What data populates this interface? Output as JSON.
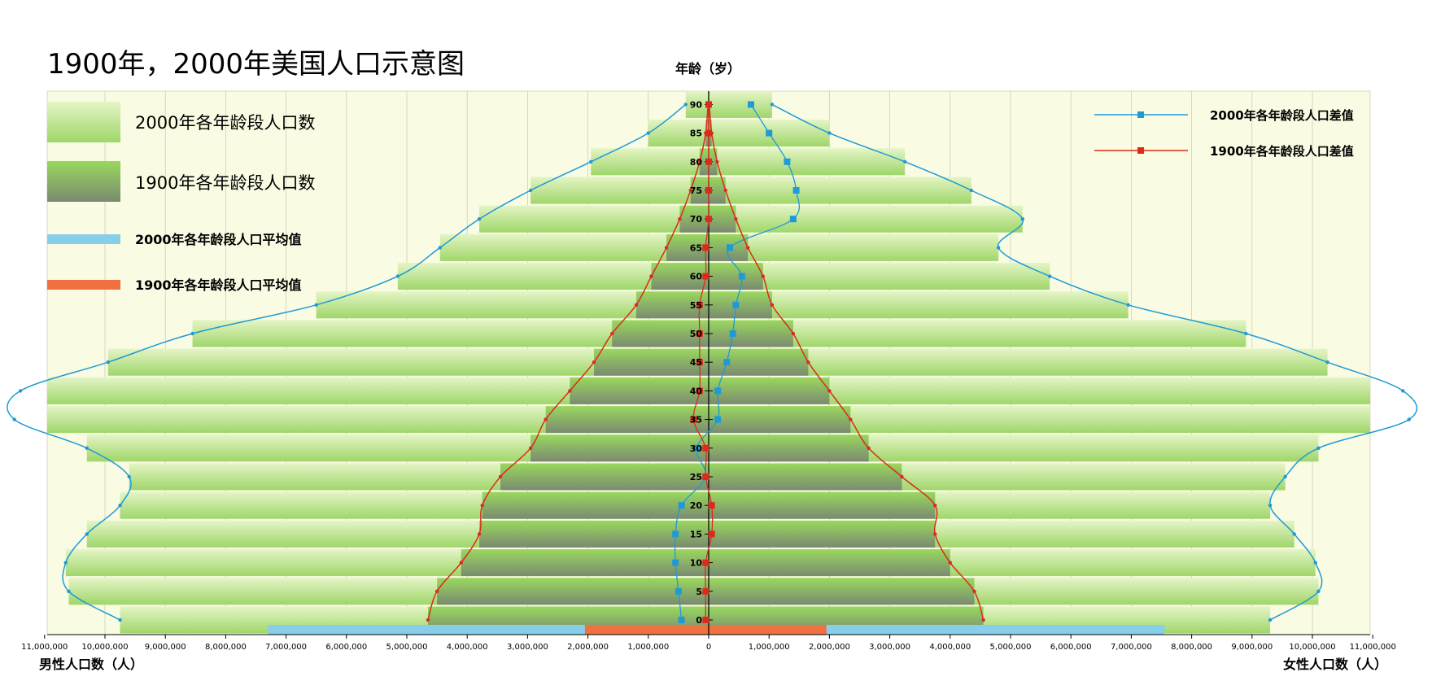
{
  "chart_data": {
    "type": "bar",
    "subtype": "population-pyramid",
    "title": "1900年，2000年美国人口示意图",
    "y_axis_title": "年龄（岁）",
    "x_axis_left_title": "男性人口数（人）",
    "x_axis_right_title": "女性人口数（人）",
    "ages": [
      0,
      5,
      10,
      15,
      20,
      25,
      30,
      35,
      40,
      45,
      50,
      55,
      60,
      65,
      70,
      75,
      80,
      85,
      90
    ],
    "x_ticks": [
      11000000,
      10000000,
      9000000,
      8000000,
      7000000,
      6000000,
      5000000,
      4000000,
      3000000,
      2000000,
      1000000,
      0,
      1000000,
      2000000,
      3000000,
      4000000,
      5000000,
      6000000,
      7000000,
      8000000,
      9000000,
      10000000,
      11000000
    ],
    "x_tick_labels": [
      "11,000,000",
      "10,000,000",
      "9,000,000",
      "8,000,000",
      "7,000,000",
      "6,000,000",
      "5,000,000",
      "4,000,000",
      "3,000,000",
      "2,000,000",
      "1,000,000",
      "0",
      "1,000,000",
      "2,000,000",
      "3,000,000",
      "4,000,000",
      "5,000,000",
      "6,000,000",
      "7,000,000",
      "8,000,000",
      "9,000,000",
      "10,000,000",
      "11,000,000"
    ],
    "xlim": [
      -11600000,
      11600000
    ],
    "grid": true,
    "legend": {
      "male_female_2000_bars": "2000年各年龄段人口数",
      "male_female_1900_bars": "1900年各年龄段人口数",
      "avg_2000": "2000年各年龄段人口平均值",
      "avg_1900": "1900年各年龄段人口平均值",
      "diff_2000": "2000年各年龄段人口差值",
      "diff_1900": "1900年各年龄段人口差值"
    },
    "series": [
      {
        "key": "male_2000",
        "values": [
          9750000,
          10600000,
          10650000,
          10300000,
          9750000,
          9600000,
          10300000,
          11500000,
          11400000,
          9950000,
          8550000,
          6500000,
          5150000,
          4450000,
          3800000,
          2950000,
          1950000,
          1000000,
          380000
        ]
      },
      {
        "key": "female_2000",
        "values": [
          9300000,
          10100000,
          10050000,
          9700000,
          9300000,
          9550000,
          10100000,
          11600000,
          11500000,
          10250000,
          8900000,
          6950000,
          5650000,
          4800000,
          5200000,
          4350000,
          3250000,
          2000000,
          1050000
        ]
      },
      {
        "key": "male_1900",
        "values": [
          4650000,
          4500000,
          4100000,
          3800000,
          3750000,
          3450000,
          2950000,
          2700000,
          2300000,
          1900000,
          1600000,
          1200000,
          950000,
          700000,
          480000,
          300000,
          150000,
          50000,
          10000
        ]
      },
      {
        "key": "female_1900",
        "values": [
          4550000,
          4400000,
          4000000,
          3750000,
          3750000,
          3200000,
          2650000,
          2350000,
          2000000,
          1650000,
          1400000,
          1050000,
          900000,
          650000,
          450000,
          280000,
          140000,
          50000,
          10000
        ]
      },
      {
        "key": "diff_2000",
        "values": [
          -450000,
          -500000,
          -550000,
          -550000,
          -450000,
          -50000,
          -200000,
          150000,
          150000,
          300000,
          400000,
          450000,
          550000,
          350000,
          1400000,
          1450000,
          1300000,
          1000000,
          700000
        ]
      },
      {
        "key": "diff_1900",
        "values": [
          -50000,
          -50000,
          -50000,
          50000,
          50000,
          -50000,
          -50000,
          -250000,
          -150000,
          -150000,
          -150000,
          -150000,
          -50000,
          -50000,
          0,
          0,
          0,
          0,
          0
        ]
      }
    ],
    "averages": {
      "avg_2000_male": 7300000,
      "avg_2000_female": 7550000,
      "avg_1900_male": 2050000,
      "avg_1900_female": 1950000
    },
    "colors": {
      "plot_bg": "#f9fbe2",
      "bar_2000_top": "#e4f5c5",
      "bar_2000_bottom": "#9fd66a",
      "bar_1900_top": "#9ad85e",
      "bar_1900_bottom": "#7a8a70",
      "avg_2000": "#87ceeb",
      "avg_1900": "#f07040",
      "diff_2000": "#1f9ad6",
      "diff_1900": "#dd2a1a",
      "grid": "#c9c9b0"
    }
  }
}
